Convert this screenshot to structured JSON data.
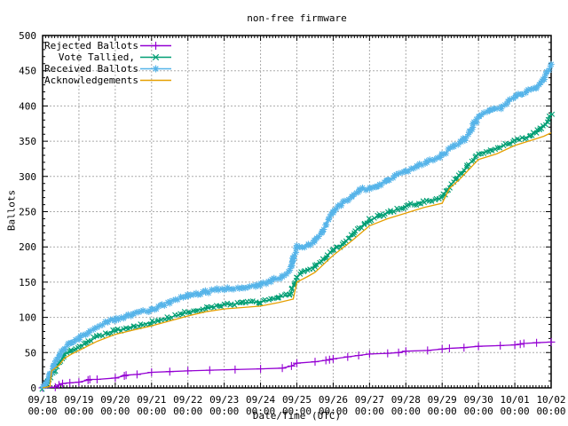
{
  "title": "non-free firmware",
  "chart_data": {
    "type": "line",
    "title": "non-free firmware",
    "xlabel": "Date/Time (UTC)",
    "ylabel": "Ballots",
    "ylim": [
      0,
      500
    ],
    "xlim_days": [
      0,
      14
    ],
    "grid": true,
    "legend_position": "top-left-inside",
    "grid_color": "#ababab",
    "border_color": "#000000",
    "y_ticks": [
      0,
      50,
      100,
      150,
      200,
      250,
      300,
      350,
      400,
      450,
      500
    ],
    "y_minor_step": 10,
    "x_minor_per_day": 12,
    "x_tick_labels": [
      [
        "09/18",
        "00:00"
      ],
      [
        "09/19",
        "00:00"
      ],
      [
        "09/20",
        "00:00"
      ],
      [
        "09/21",
        "00:00"
      ],
      [
        "09/22",
        "00:00"
      ],
      [
        "09/23",
        "00:00"
      ],
      [
        "09/24",
        "00:00"
      ],
      [
        "09/25",
        "00:00"
      ],
      [
        "09/26",
        "00:00"
      ],
      [
        "09/27",
        "00:00"
      ],
      [
        "09/28",
        "00:00"
      ],
      [
        "09/29",
        "00:00"
      ],
      [
        "09/30",
        "00:00"
      ],
      [
        "10/01",
        "00:00"
      ],
      [
        "10/02",
        "00:00"
      ]
    ],
    "series": [
      {
        "name": "Rejected Ballots",
        "color": "#9400d3",
        "marker": "plus",
        "dense_markers": false,
        "points": [
          [
            0,
            0
          ],
          [
            0.35,
            1
          ],
          [
            0.45,
            4
          ],
          [
            0.55,
            6
          ],
          [
            0.75,
            7
          ],
          [
            1.0,
            8
          ],
          [
            1.25,
            11
          ],
          [
            1.3,
            12
          ],
          [
            1.5,
            12
          ],
          [
            2.0,
            14
          ],
          [
            2.25,
            17
          ],
          [
            2.3,
            18
          ],
          [
            2.6,
            19
          ],
          [
            3.0,
            22
          ],
          [
            3.5,
            23
          ],
          [
            4.0,
            24
          ],
          [
            4.6,
            25
          ],
          [
            5.3,
            26
          ],
          [
            6.0,
            27
          ],
          [
            6.6,
            28
          ],
          [
            6.85,
            31
          ],
          [
            7.0,
            35
          ],
          [
            7.5,
            37
          ],
          [
            7.8,
            39
          ],
          [
            7.9,
            40
          ],
          [
            8.0,
            41
          ],
          [
            8.4,
            44
          ],
          [
            8.7,
            46
          ],
          [
            9.0,
            48
          ],
          [
            9.5,
            49
          ],
          [
            9.8,
            50
          ],
          [
            10.0,
            52
          ],
          [
            10.6,
            53
          ],
          [
            11.0,
            55
          ],
          [
            11.2,
            56
          ],
          [
            11.6,
            57
          ],
          [
            12.0,
            59
          ],
          [
            12.6,
            60
          ],
          [
            13.0,
            61
          ],
          [
            13.15,
            62
          ],
          [
            13.25,
            63
          ],
          [
            13.6,
            64
          ],
          [
            14.0,
            65
          ]
        ]
      },
      {
        "name": "Vote Tallied,",
        "color": "#009e73",
        "marker": "cross",
        "dense_markers": true,
        "points": [
          [
            0,
            0
          ],
          [
            0.1,
            3
          ],
          [
            0.2,
            12
          ],
          [
            0.3,
            22
          ],
          [
            0.45,
            35
          ],
          [
            0.6,
            47
          ],
          [
            0.8,
            53
          ],
          [
            1.0,
            58
          ],
          [
            1.2,
            64
          ],
          [
            1.5,
            72
          ],
          [
            1.8,
            78
          ],
          [
            2.0,
            81
          ],
          [
            2.5,
            87
          ],
          [
            3.0,
            93
          ],
          [
            3.5,
            100
          ],
          [
            4.0,
            107
          ],
          [
            4.5,
            113
          ],
          [
            5.0,
            118
          ],
          [
            5.5,
            120
          ],
          [
            6.0,
            122
          ],
          [
            6.5,
            128
          ],
          [
            6.8,
            132
          ],
          [
            6.95,
            148
          ],
          [
            7.0,
            158
          ],
          [
            7.2,
            166
          ],
          [
            7.5,
            172
          ],
          [
            7.8,
            185
          ],
          [
            8.0,
            196
          ],
          [
            8.3,
            205
          ],
          [
            8.6,
            222
          ],
          [
            9.0,
            238
          ],
          [
            9.3,
            244
          ],
          [
            9.6,
            250
          ],
          [
            10.0,
            258
          ],
          [
            10.5,
            264
          ],
          [
            11.0,
            270
          ],
          [
            11.15,
            282
          ],
          [
            11.4,
            298
          ],
          [
            11.7,
            315
          ],
          [
            12.0,
            332
          ],
          [
            12.3,
            337
          ],
          [
            12.6,
            342
          ],
          [
            13.0,
            351
          ],
          [
            13.4,
            357
          ],
          [
            13.7,
            367
          ],
          [
            13.9,
            378
          ],
          [
            14.0,
            390
          ]
        ]
      },
      {
        "name": "Received Ballots",
        "color": "#56b4e9",
        "marker": "star",
        "dense_markers": true,
        "points": [
          [
            0,
            0
          ],
          [
            0.1,
            5
          ],
          [
            0.2,
            18
          ],
          [
            0.3,
            30
          ],
          [
            0.45,
            45
          ],
          [
            0.6,
            57
          ],
          [
            0.8,
            63
          ],
          [
            1.0,
            70
          ],
          [
            1.2,
            77
          ],
          [
            1.5,
            86
          ],
          [
            1.8,
            94
          ],
          [
            2.0,
            97
          ],
          [
            2.5,
            105
          ],
          [
            3.0,
            110
          ],
          [
            3.5,
            122
          ],
          [
            4.0,
            131
          ],
          [
            4.5,
            136
          ],
          [
            5.0,
            141
          ],
          [
            5.5,
            143
          ],
          [
            6.0,
            147
          ],
          [
            6.3,
            152
          ],
          [
            6.6,
            158
          ],
          [
            6.8,
            166
          ],
          [
            6.9,
            185
          ],
          [
            7.0,
            200
          ],
          [
            7.3,
            202
          ],
          [
            7.5,
            210
          ],
          [
            7.7,
            223
          ],
          [
            8.0,
            250
          ],
          [
            8.2,
            260
          ],
          [
            8.5,
            270
          ],
          [
            8.75,
            281
          ],
          [
            9.0,
            283
          ],
          [
            9.2,
            286
          ],
          [
            9.5,
            295
          ],
          [
            10.0,
            307
          ],
          [
            10.3,
            315
          ],
          [
            10.6,
            320
          ],
          [
            11.0,
            330
          ],
          [
            11.3,
            341
          ],
          [
            11.6,
            352
          ],
          [
            11.8,
            366
          ],
          [
            12.0,
            385
          ],
          [
            12.3,
            392
          ],
          [
            12.6,
            397
          ],
          [
            13.0,
            413
          ],
          [
            13.3,
            420
          ],
          [
            13.6,
            427
          ],
          [
            13.8,
            437
          ],
          [
            14.0,
            458
          ]
        ]
      },
      {
        "name": "Acknowledgements",
        "color": "#e69f00",
        "marker": "none",
        "dense_markers": false,
        "points": [
          [
            0,
            0
          ],
          [
            0.2,
            2
          ],
          [
            0.25,
            24
          ],
          [
            0.45,
            32
          ],
          [
            0.6,
            42
          ],
          [
            0.8,
            48
          ],
          [
            1.0,
            53
          ],
          [
            1.5,
            66
          ],
          [
            2.0,
            76
          ],
          [
            2.5,
            82
          ],
          [
            3.0,
            88
          ],
          [
            3.5,
            95
          ],
          [
            4.0,
            102
          ],
          [
            4.5,
            108
          ],
          [
            5.0,
            112
          ],
          [
            5.5,
            114
          ],
          [
            6.0,
            116
          ],
          [
            6.5,
            121
          ],
          [
            6.9,
            126
          ],
          [
            7.0,
            150
          ],
          [
            7.3,
            158
          ],
          [
            7.5,
            164
          ],
          [
            8.0,
            188
          ],
          [
            8.5,
            208
          ],
          [
            9.0,
            230
          ],
          [
            9.5,
            240
          ],
          [
            10.0,
            248
          ],
          [
            10.5,
            256
          ],
          [
            11.0,
            262
          ],
          [
            11.2,
            283
          ],
          [
            11.5,
            297
          ],
          [
            12.0,
            324
          ],
          [
            12.5,
            332
          ],
          [
            13.0,
            344
          ],
          [
            13.5,
            352
          ],
          [
            13.8,
            357
          ],
          [
            14.0,
            362
          ]
        ]
      }
    ]
  }
}
